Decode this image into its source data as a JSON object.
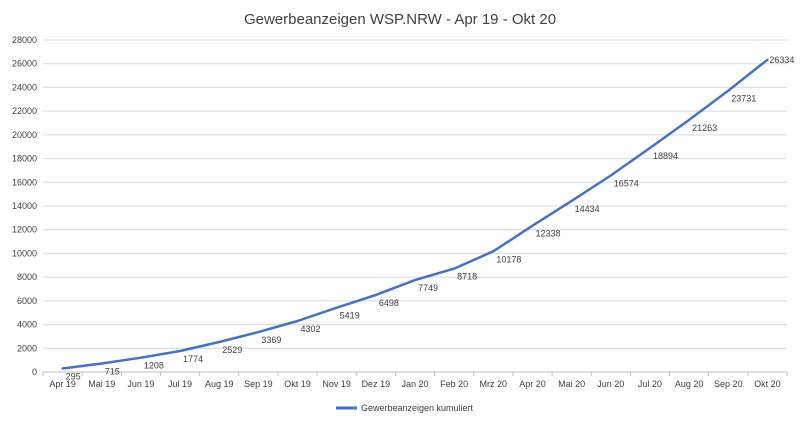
{
  "chart_data": {
    "type": "line",
    "title": "Gewerbeanzeigen WSP.NRW - Apr 19 - Okt 20",
    "xlabel": "",
    "ylabel": "",
    "categories": [
      "Apr 19",
      "Mai 19",
      "Jun 19",
      "Jul 19",
      "Aug 19",
      "Sep 19",
      "Okt 19",
      "Nov 19",
      "Dez 19",
      "Jan 20",
      "Feb 20",
      "Mrz 20",
      "Apr 20",
      "Mai 20",
      "Jun 20",
      "Jul 20",
      "Aug 20",
      "Sep 20",
      "Okt 20"
    ],
    "series": [
      {
        "name": "Gewerbeanzeigen kumuliert",
        "color": "#4472c4",
        "values": [
          295,
          715,
          1208,
          1774,
          2529,
          3369,
          4302,
          5419,
          6498,
          7749,
          8718,
          10178,
          12338,
          14434,
          16574,
          18894,
          21263,
          23731,
          26334
        ]
      }
    ],
    "ylim": [
      0,
      28000
    ],
    "yticks": [
      0,
      2000,
      4000,
      6000,
      8000,
      10000,
      12000,
      14000,
      16000,
      18000,
      20000,
      22000,
      24000,
      26000,
      28000
    ],
    "grid": true,
    "legend_position": "bottom",
    "data_labels": true
  }
}
